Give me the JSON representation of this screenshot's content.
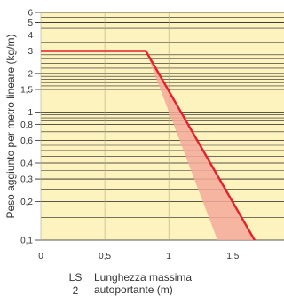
{
  "chart_data": {
    "type": "line",
    "ylabel": "Peso aggiunto per metro lineare (kg/m)",
    "xlabel_symbol_num": "LS",
    "xlabel_symbol_den": "2",
    "xlabel_line1": "Lunghezza massima",
    "xlabel_line2": "autoportante (m)",
    "y_scale": "log",
    "xlim": [
      0,
      1.9
    ],
    "ylim": [
      0.1,
      6
    ],
    "x_ticks": [
      {
        "value": 0,
        "label": "0"
      },
      {
        "value": 0.5,
        "label": "0,5"
      },
      {
        "value": 1,
        "label": "1"
      },
      {
        "value": 1.5,
        "label": "1,5"
      }
    ],
    "y_ticks": [
      {
        "value": 6,
        "label": "6"
      },
      {
        "value": 5,
        "label": "5"
      },
      {
        "value": 4,
        "label": "4"
      },
      {
        "value": 3,
        "label": "3"
      },
      {
        "value": 2,
        "label": "2"
      },
      {
        "value": 1.5,
        "label": "1,5"
      },
      {
        "value": 1,
        "label": "1"
      },
      {
        "value": 0.8,
        "label": "0,8"
      },
      {
        "value": 0.6,
        "label": "0,6"
      },
      {
        "value": 0.4,
        "label": "0,4"
      },
      {
        "value": 0.3,
        "label": "0,3"
      },
      {
        "value": 0.2,
        "label": "0,2"
      },
      {
        "value": 0.1,
        "label": "0,1"
      }
    ],
    "y_minor_gridlines": [
      5.5,
      4.5,
      3.5,
      2.8,
      2.6,
      2.4,
      2.2,
      1.9,
      1.8,
      1.7,
      1.6,
      0.95,
      0.9,
      0.85,
      0.75,
      0.7,
      0.65,
      0.55,
      0.5,
      0.45,
      0.35,
      0.25,
      0.15
    ],
    "series": [
      {
        "values": [
          [
            0,
            3
          ],
          [
            0.82,
            3
          ],
          [
            1.67,
            0.1
          ]
        ],
        "color": "#e8202a"
      }
    ],
    "band": {
      "values": [
        [
          0.82,
          3
        ],
        [
          1.67,
          0.1
        ],
        [
          1.38,
          0.1
        ]
      ],
      "color": "#f4a99a"
    },
    "colors": {
      "background": "#fdf3bf",
      "grid": "#222222",
      "line": "#e8202a",
      "band": "#f4a99a"
    },
    "grid": true
  }
}
